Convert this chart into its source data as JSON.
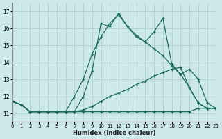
{
  "xlabel": "Humidex (Indice chaleur)",
  "xlim": [
    0,
    23
  ],
  "ylim": [
    10.5,
    17.5
  ],
  "yticks": [
    11,
    12,
    13,
    14,
    15,
    16,
    17
  ],
  "xticks": [
    0,
    1,
    2,
    3,
    4,
    5,
    6,
    7,
    8,
    9,
    10,
    11,
    12,
    13,
    14,
    15,
    16,
    17,
    18,
    19,
    20,
    21,
    22,
    23
  ],
  "bg_color": "#cce8e8",
  "grid_color": "#aacccc",
  "line_color": "#1a6b5a",
  "lines": [
    {
      "x": [
        0,
        1,
        2,
        3,
        4,
        5,
        6,
        7,
        8,
        9,
        10,
        11,
        12,
        13,
        14,
        15,
        16,
        17,
        18,
        19,
        20,
        21,
        22,
        23
      ],
      "y": [
        11.7,
        11.5,
        11.1,
        11.1,
        11.1,
        11.1,
        11.1,
        11.1,
        11.1,
        11.1,
        11.1,
        11.1,
        11.1,
        11.1,
        11.1,
        11.1,
        11.1,
        11.1,
        11.1,
        11.1,
        11.1,
        11.3,
        11.3,
        11.3
      ]
    },
    {
      "x": [
        0,
        1,
        2,
        3,
        4,
        5,
        6,
        7,
        8,
        9,
        10,
        11,
        12,
        13,
        14,
        15,
        16,
        17,
        18,
        19,
        20,
        21,
        22,
        23
      ],
      "y": [
        11.7,
        11.5,
        11.1,
        11.1,
        11.1,
        11.1,
        11.1,
        11.1,
        11.2,
        11.4,
        11.7,
        12.0,
        12.2,
        12.4,
        12.7,
        12.9,
        13.2,
        13.4,
        13.6,
        13.7,
        12.5,
        11.6,
        11.3,
        11.3
      ]
    },
    {
      "x": [
        0,
        1,
        2,
        3,
        4,
        5,
        6,
        7,
        8,
        9,
        10,
        11,
        12,
        13,
        14,
        15,
        16,
        17,
        18,
        19,
        20,
        21,
        22,
        23
      ],
      "y": [
        11.7,
        11.5,
        11.1,
        11.1,
        11.1,
        11.1,
        11.1,
        12.0,
        13.0,
        14.5,
        15.5,
        16.3,
        16.8,
        16.1,
        15.6,
        15.2,
        14.8,
        14.4,
        13.8,
        13.3,
        13.6,
        13.0,
        11.6,
        11.3
      ]
    },
    {
      "x": [
        0,
        1,
        2,
        3,
        4,
        5,
        6,
        7,
        8,
        9,
        10,
        11,
        12,
        13,
        14,
        15,
        16,
        17,
        18,
        19,
        20,
        21,
        22,
        23
      ],
      "y": [
        11.7,
        11.5,
        11.1,
        11.1,
        11.1,
        11.1,
        11.1,
        11.1,
        12.0,
        13.5,
        16.3,
        16.1,
        16.9,
        16.1,
        15.5,
        15.2,
        15.8,
        16.6,
        13.9,
        13.3,
        12.5,
        11.6,
        11.3,
        11.3
      ]
    }
  ]
}
